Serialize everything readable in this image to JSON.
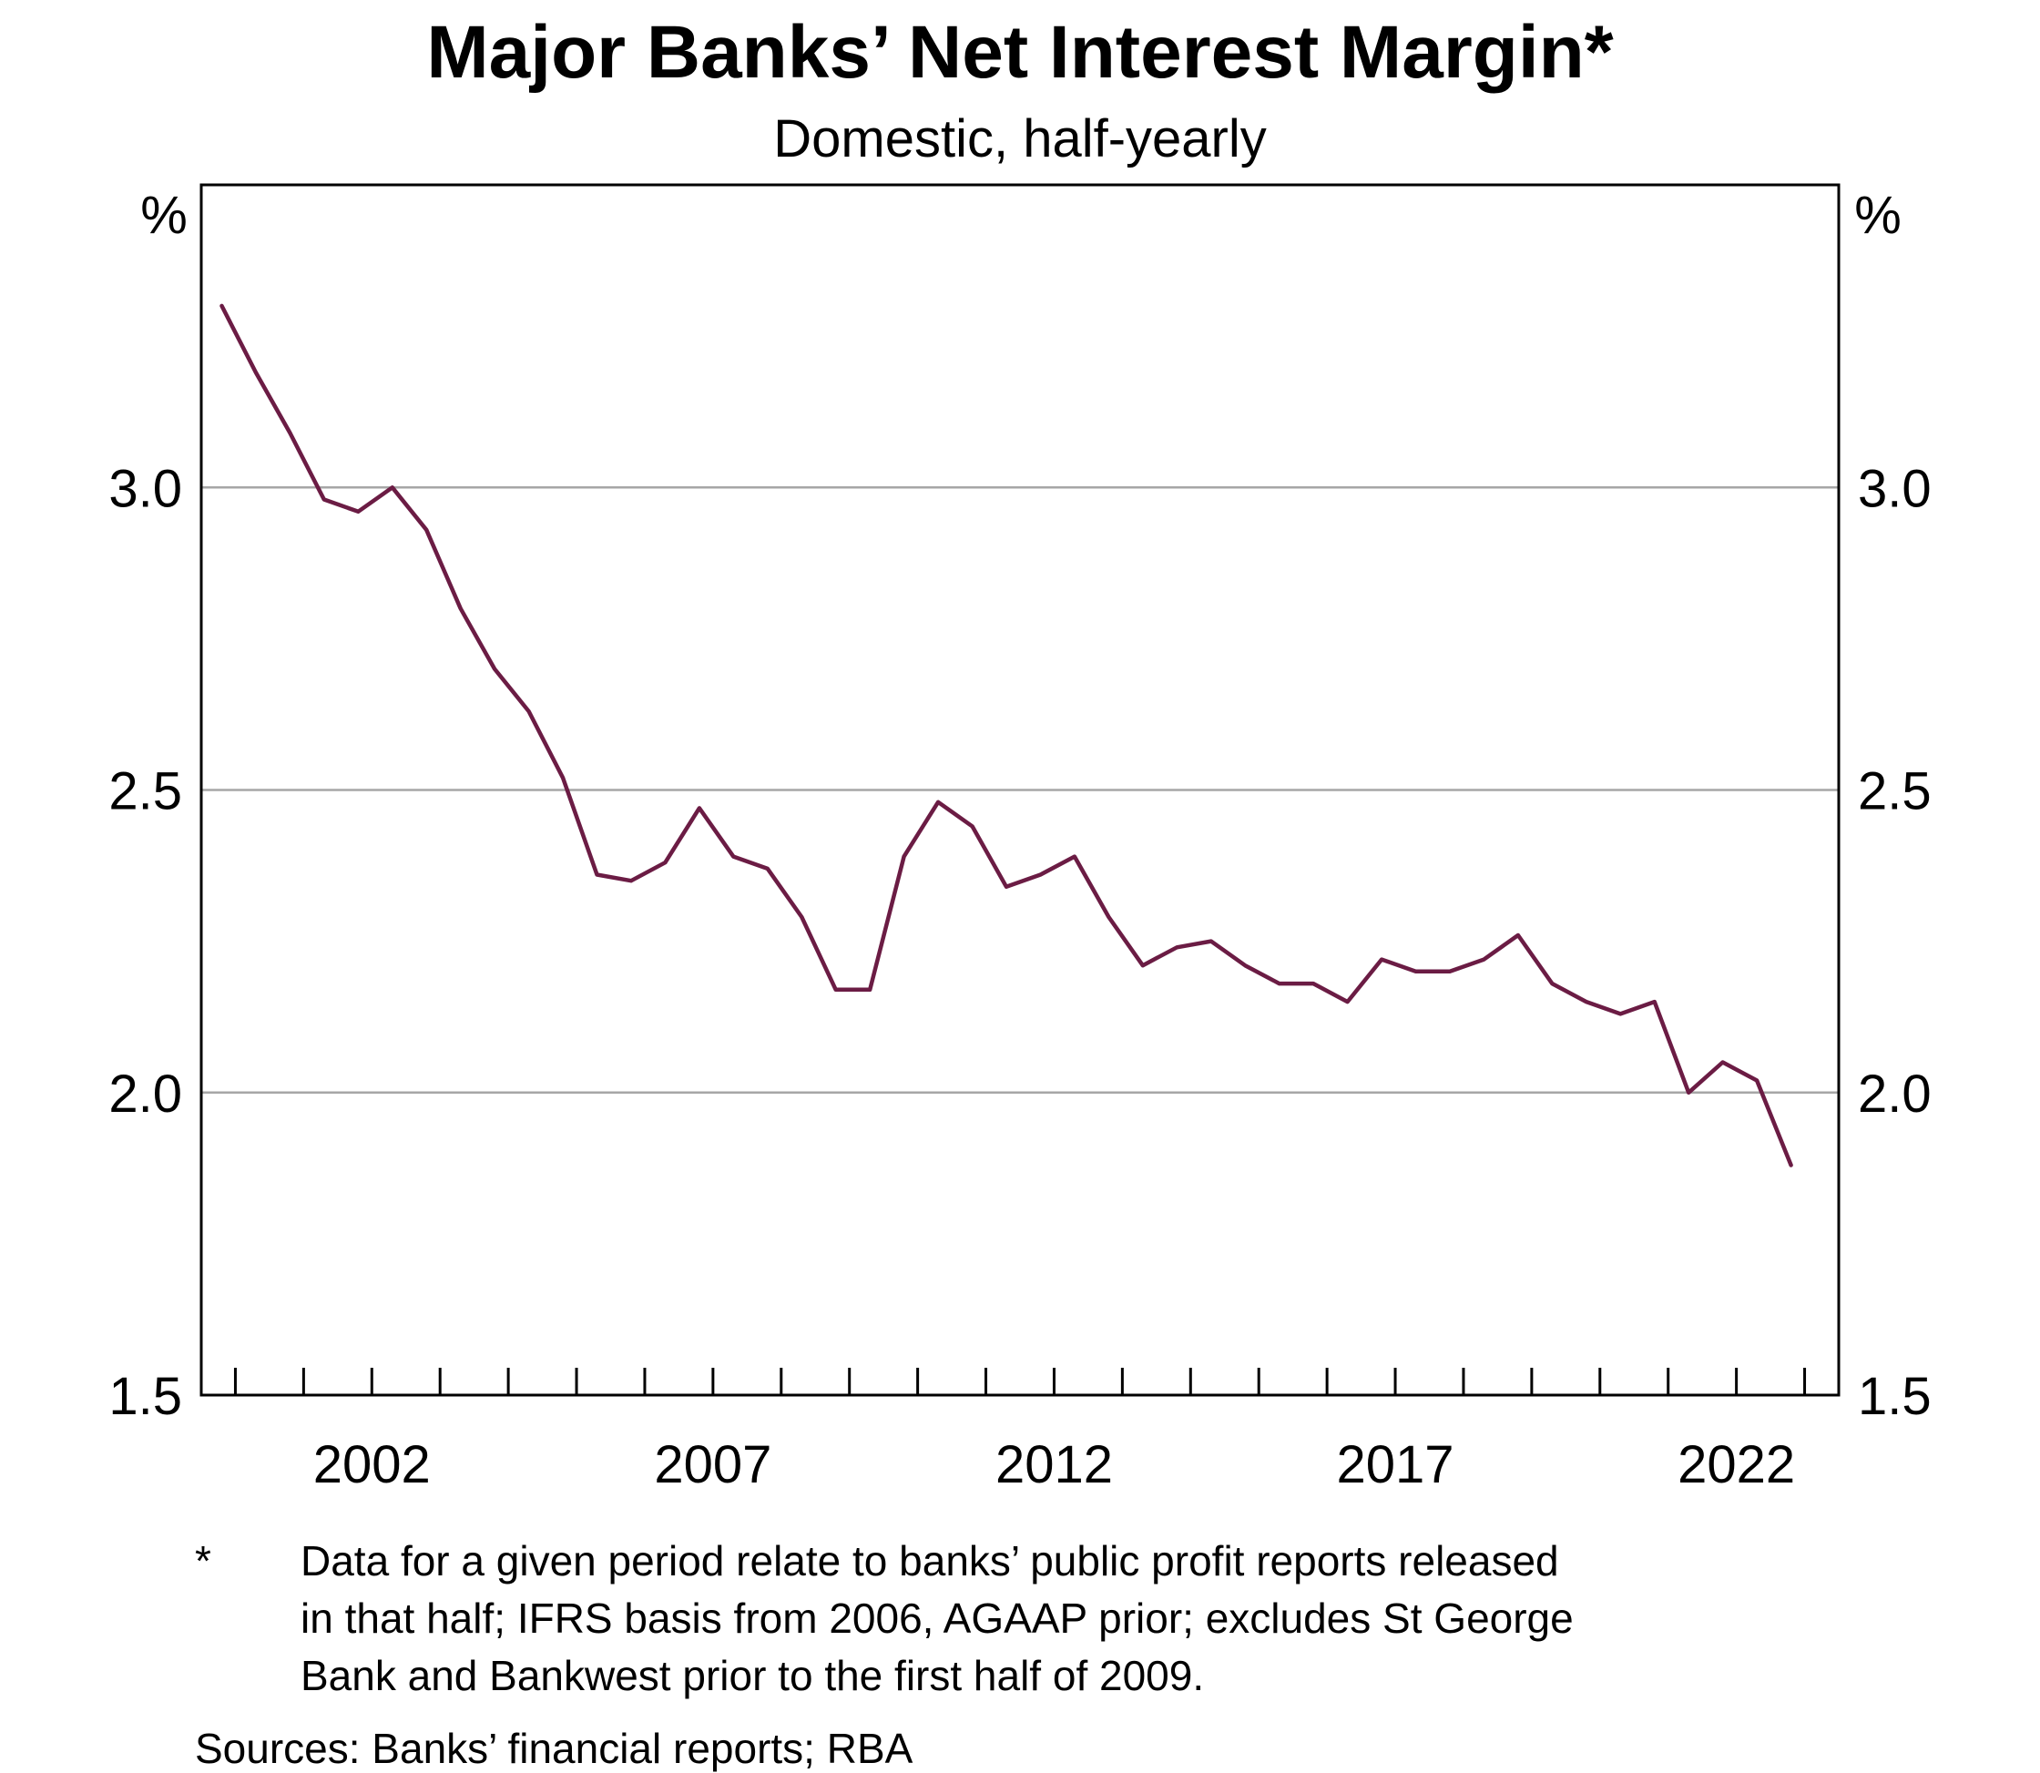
{
  "chart_data": {
    "type": "line",
    "title": "Major Banks’ Net Interest Margin*",
    "subtitle": "Domestic, half-yearly",
    "y_unit_left": "%",
    "y_unit_right": "%",
    "ylim": [
      1.5,
      3.5
    ],
    "yticks": [
      "1.5",
      "2.0",
      "2.5",
      "3.0"
    ],
    "ytick_values": [
      1.5,
      2.0,
      2.5,
      3.0
    ],
    "xticks": [
      "2002",
      "2007",
      "2012",
      "2017",
      "2022"
    ],
    "xtick_values": [
      2002,
      2007,
      2012,
      2017,
      2022
    ],
    "xlim": [
      1999.5,
      2023.5
    ],
    "grid": true,
    "line_color": "#6b1c44",
    "series": [
      {
        "x": [
          1999.8,
          2000.3,
          2000.8,
          2001.3,
          2001.8,
          2002.3,
          2002.8,
          2003.3,
          2003.8,
          2004.3,
          2004.8,
          2005.3,
          2005.8,
          2006.3,
          2006.8,
          2007.3,
          2007.8,
          2008.3,
          2008.8,
          2009.3,
          2009.8,
          2010.3,
          2010.8,
          2011.3,
          2011.8,
          2012.3,
          2012.8,
          2013.3,
          2013.8,
          2014.3,
          2014.8,
          2015.3,
          2015.8,
          2016.3,
          2016.8,
          2017.3,
          2017.8,
          2018.3,
          2018.8,
          2019.3,
          2019.8,
          2020.3,
          2020.8,
          2021.3,
          2021.8,
          2022.3,
          2022.8
        ],
        "values": [
          3.3,
          3.19,
          3.09,
          2.98,
          2.96,
          3.0,
          2.93,
          2.8,
          2.7,
          2.63,
          2.52,
          2.36,
          2.35,
          2.38,
          2.47,
          2.39,
          2.37,
          2.29,
          2.17,
          2.17,
          2.39,
          2.48,
          2.44,
          2.34,
          2.36,
          2.39,
          2.29,
          2.21,
          2.24,
          2.25,
          2.21,
          2.18,
          2.18,
          2.15,
          2.22,
          2.2,
          2.2,
          2.22,
          2.26,
          2.18,
          2.15,
          2.13,
          2.15,
          2.0,
          2.05,
          2.02,
          1.88
        ]
      }
    ],
    "footnote_marker": "*",
    "footnote_lines": [
      "Data for a given period relate to banks’ public profit reports released",
      "in that half; IFRS basis from 2006, AGAAP prior; excludes St George",
      "Bank and Bankwest prior to the first half of 2009."
    ],
    "sources": "Sources: Banks’ financial reports; RBA"
  }
}
